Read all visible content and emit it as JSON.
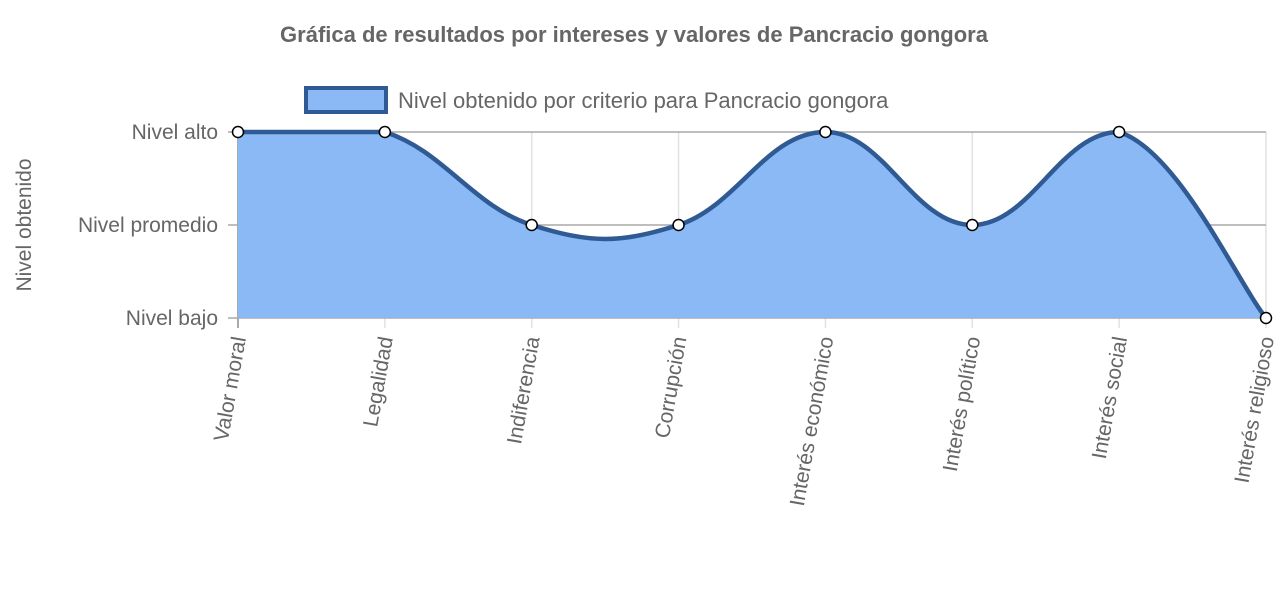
{
  "chart_data": {
    "type": "area",
    "title": "Gráfica de resultados por intereses y valores de Pancracio gongora",
    "ylabel": "Nivel obtenido",
    "xlabel": "",
    "categories": [
      "Valor moral",
      "Legalidad",
      "Indiferencia",
      "Corrupción",
      "Interés económico",
      "Interés político",
      "Interés social",
      "Interés religioso"
    ],
    "y_levels": [
      "Nivel bajo",
      "Nivel promedio",
      "Nivel alto"
    ],
    "ylim": [
      0,
      2
    ],
    "series": [
      {
        "name": "Nivel obtenido por criterio para Pancracio gongora",
        "values": [
          2,
          2,
          1,
          1,
          2,
          1,
          2,
          0
        ],
        "fill_color": "#8ab9f5",
        "line_color": "#2f5a94",
        "point_color": "#ffffff"
      }
    ],
    "legend": "top",
    "grid": true
  }
}
